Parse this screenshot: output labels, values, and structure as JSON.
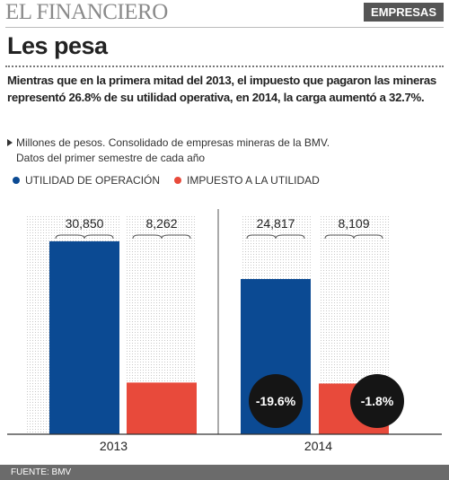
{
  "header": {
    "logo": "EL FINANCIERO",
    "section": "EMPRESAS"
  },
  "title": "Les pesa",
  "summary": "Mientras que en la primera mitad del 2013, el impuesto que pagaron las mineras representó 26.8% de su utilidad operativa, en 2014, la carga aumentó a 32.7%.",
  "notes": [
    "Millones de pesos. Consolidado de empresas mineras de la BMV.",
    "Datos del primer semestre de cada año"
  ],
  "chart_data": {
    "type": "bar",
    "categories": [
      "2013",
      "2014"
    ],
    "series": [
      {
        "name": "UTILIDAD DE OPERACIÓN",
        "color": "#0b4a93",
        "values": [
          30850,
          24817
        ],
        "value_labels": [
          "30,850",
          "24,817"
        ]
      },
      {
        "name": "IMPUESTO A LA UTILIDAD",
        "color": "#e84a3b",
        "values": [
          8262,
          8109
        ],
        "value_labels": [
          "8,262",
          "8,109"
        ]
      }
    ],
    "ylim": [
      0,
      35000
    ],
    "annotations": [
      "-19.6%",
      "-1.8%"
    ]
  },
  "footer": "FUENTE: BMV"
}
